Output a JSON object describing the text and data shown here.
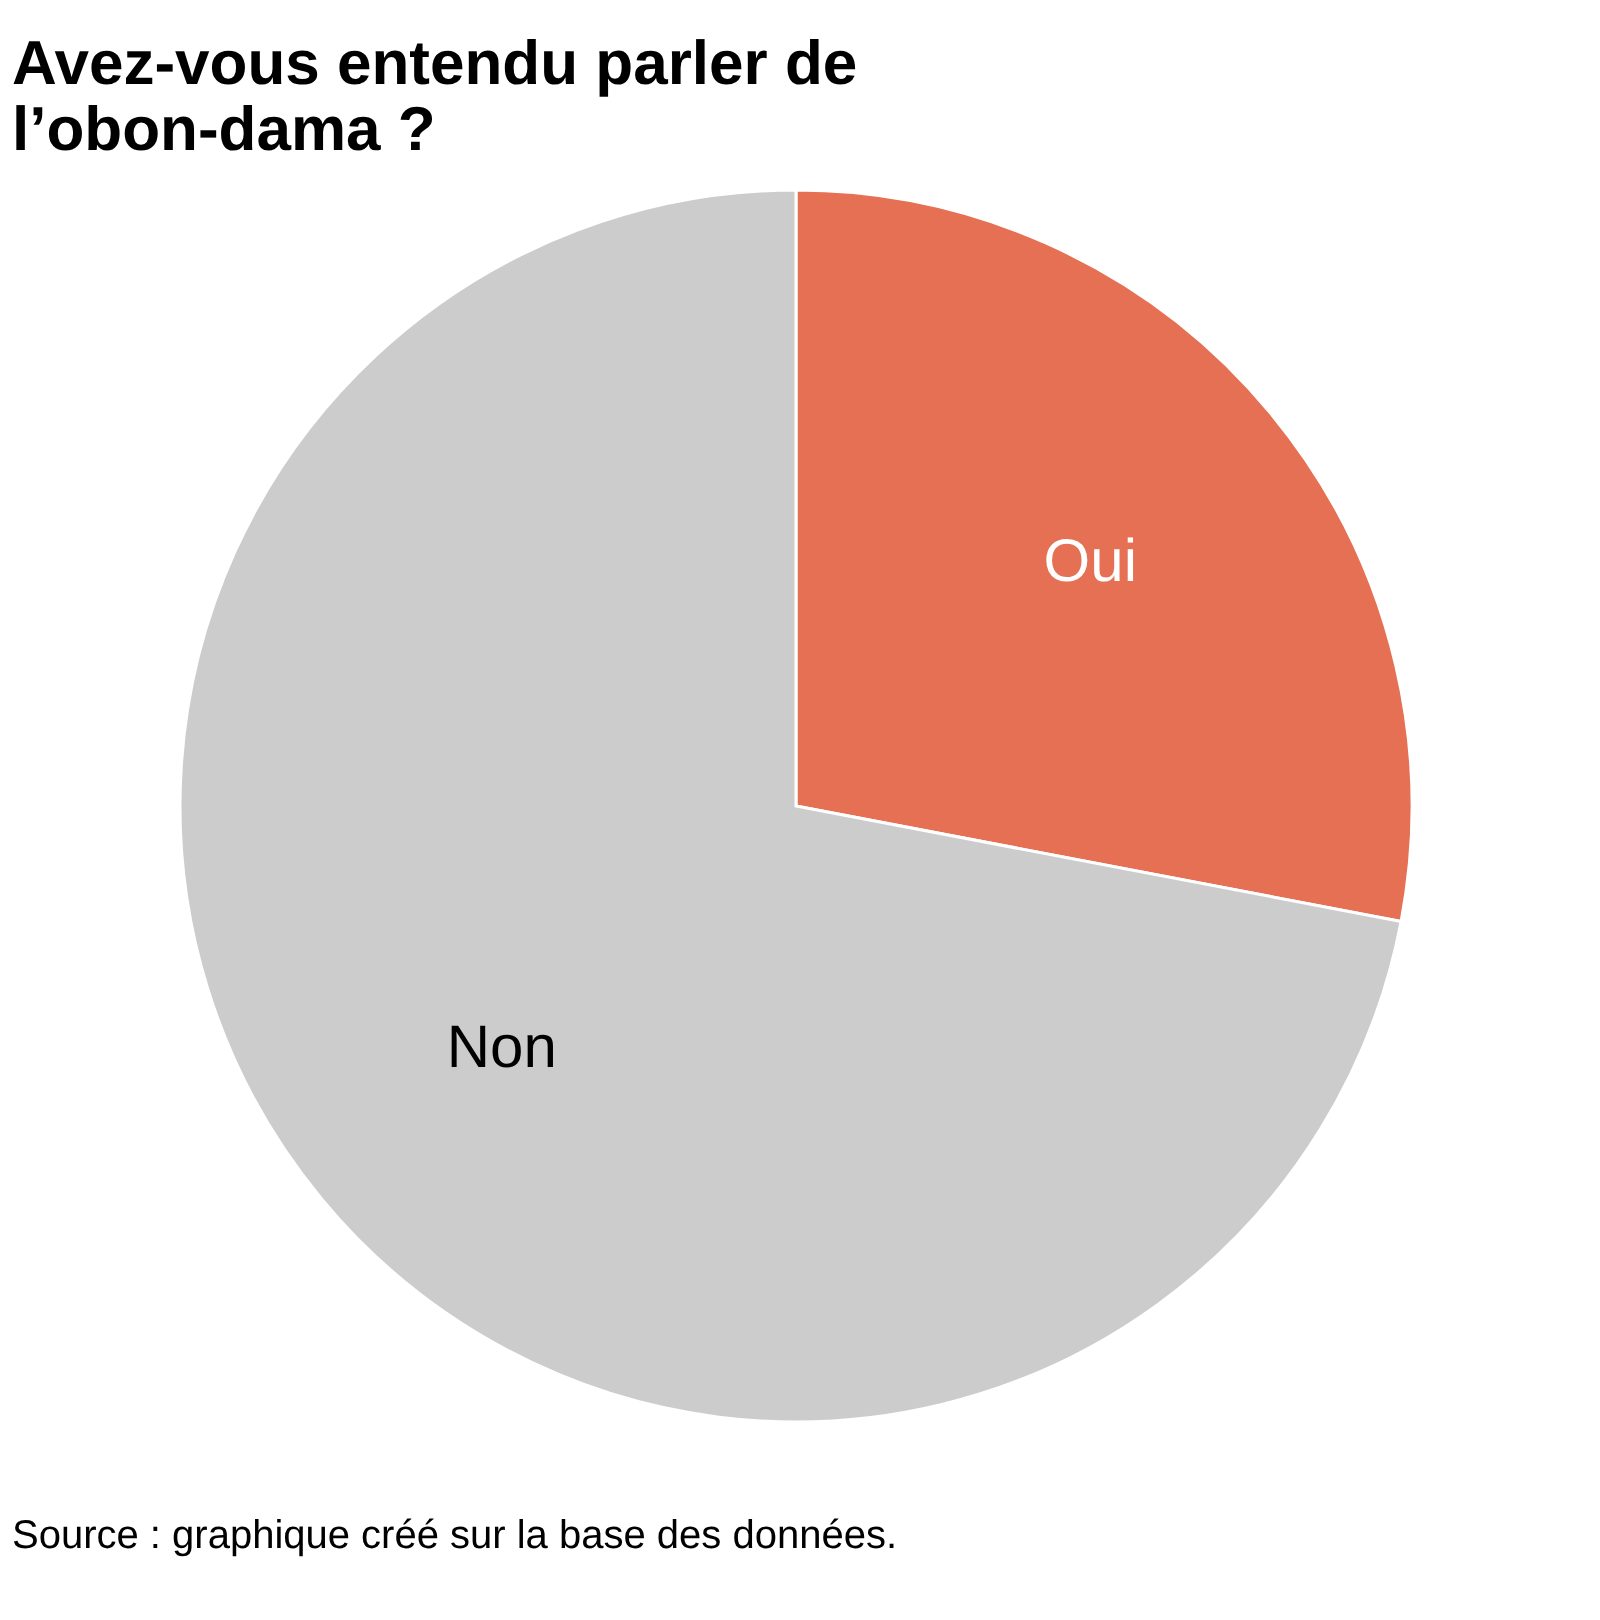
{
  "chart_data": {
    "type": "pie",
    "title": "Avez-vous entendu parler de l’obon-dama ?",
    "categories": [
      "Oui",
      "Non"
    ],
    "values": [
      28,
      72
    ],
    "colors": [
      "#e57053",
      "#cccccc"
    ],
    "legend": false,
    "annotations": [
      "Source : graphique créé sur la base des données."
    ]
  }
}
